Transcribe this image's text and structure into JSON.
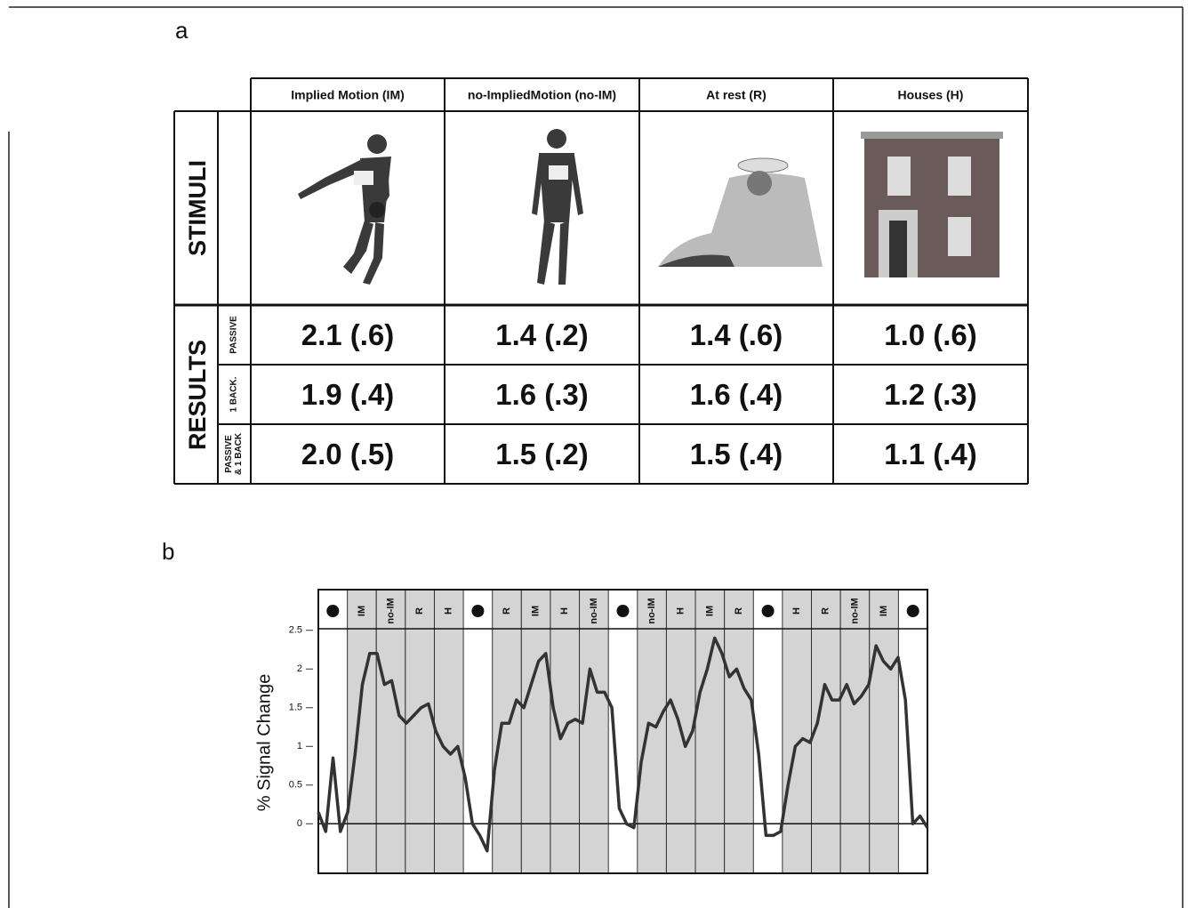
{
  "panel_a": {
    "label": "a",
    "column_headers": [
      "Implied Motion (IM)",
      "no-ImpliedMotion (no-IM)",
      "At rest (R)",
      "Houses (H)"
    ],
    "stimuli_label": "STIMULI",
    "results_label": "RESULTS",
    "result_rows": [
      {
        "label": [
          "PASSIVE"
        ],
        "cells": [
          "2.1 (.6)",
          "1.4 (.2)",
          "1.4 (.6)",
          "1.0 (.6)"
        ]
      },
      {
        "label": [
          "1 BACK."
        ],
        "cells": [
          "1.9 (.4)",
          "1.6 (.3)",
          "1.6 (.4)",
          "1.2 (.3)"
        ]
      },
      {
        "label": [
          "PASSIVE",
          "& 1 BACK"
        ],
        "cells": [
          "2.0 (.5)",
          "1.5 (.2)",
          "1.5 (.4)",
          "1.1 (.4)"
        ]
      }
    ]
  },
  "panel_b": {
    "label": "b"
  },
  "chart_data": {
    "type": "line",
    "y_label": "% Signal Change",
    "blocks": [
      null,
      "IM",
      "no-IM",
      "R",
      "H",
      null,
      "R",
      "IM",
      "H",
      "no-IM",
      null,
      "no-IM",
      "H",
      "IM",
      "R",
      null,
      "H",
      "R",
      "no-IM",
      "IM",
      null
    ],
    "values": [
      0.15,
      -0.1,
      0.85,
      -0.1,
      0.15,
      0.9,
      1.8,
      2.2,
      2.2,
      1.8,
      1.85,
      1.4,
      1.3,
      1.4,
      1.5,
      1.55,
      1.2,
      1.0,
      0.9,
      1.0,
      0.6,
      0.0,
      -0.15,
      -0.35,
      0.7,
      1.3,
      1.3,
      1.6,
      1.5,
      1.8,
      2.1,
      2.2,
      1.5,
      1.1,
      1.3,
      1.35,
      1.3,
      2.0,
      1.7,
      1.7,
      1.5,
      0.2,
      0.0,
      -0.05,
      0.8,
      1.3,
      1.25,
      1.45,
      1.6,
      1.35,
      1.0,
      1.2,
      1.7,
      2.0,
      2.4,
      2.2,
      1.9,
      2.0,
      1.75,
      1.6,
      0.9,
      -0.15,
      -0.15,
      -0.1,
      0.5,
      1.0,
      1.1,
      1.05,
      1.3,
      1.8,
      1.6,
      1.6,
      1.8,
      1.55,
      1.65,
      1.8,
      2.3,
      2.1,
      2.0,
      2.15,
      1.6,
      0.0,
      0.1,
      -0.05
    ],
    "color": "#333333",
    "ylim": [
      -0.64,
      2.52
    ],
    "yticks": [
      2.5,
      2,
      1.5,
      1,
      0.5,
      0
    ]
  }
}
